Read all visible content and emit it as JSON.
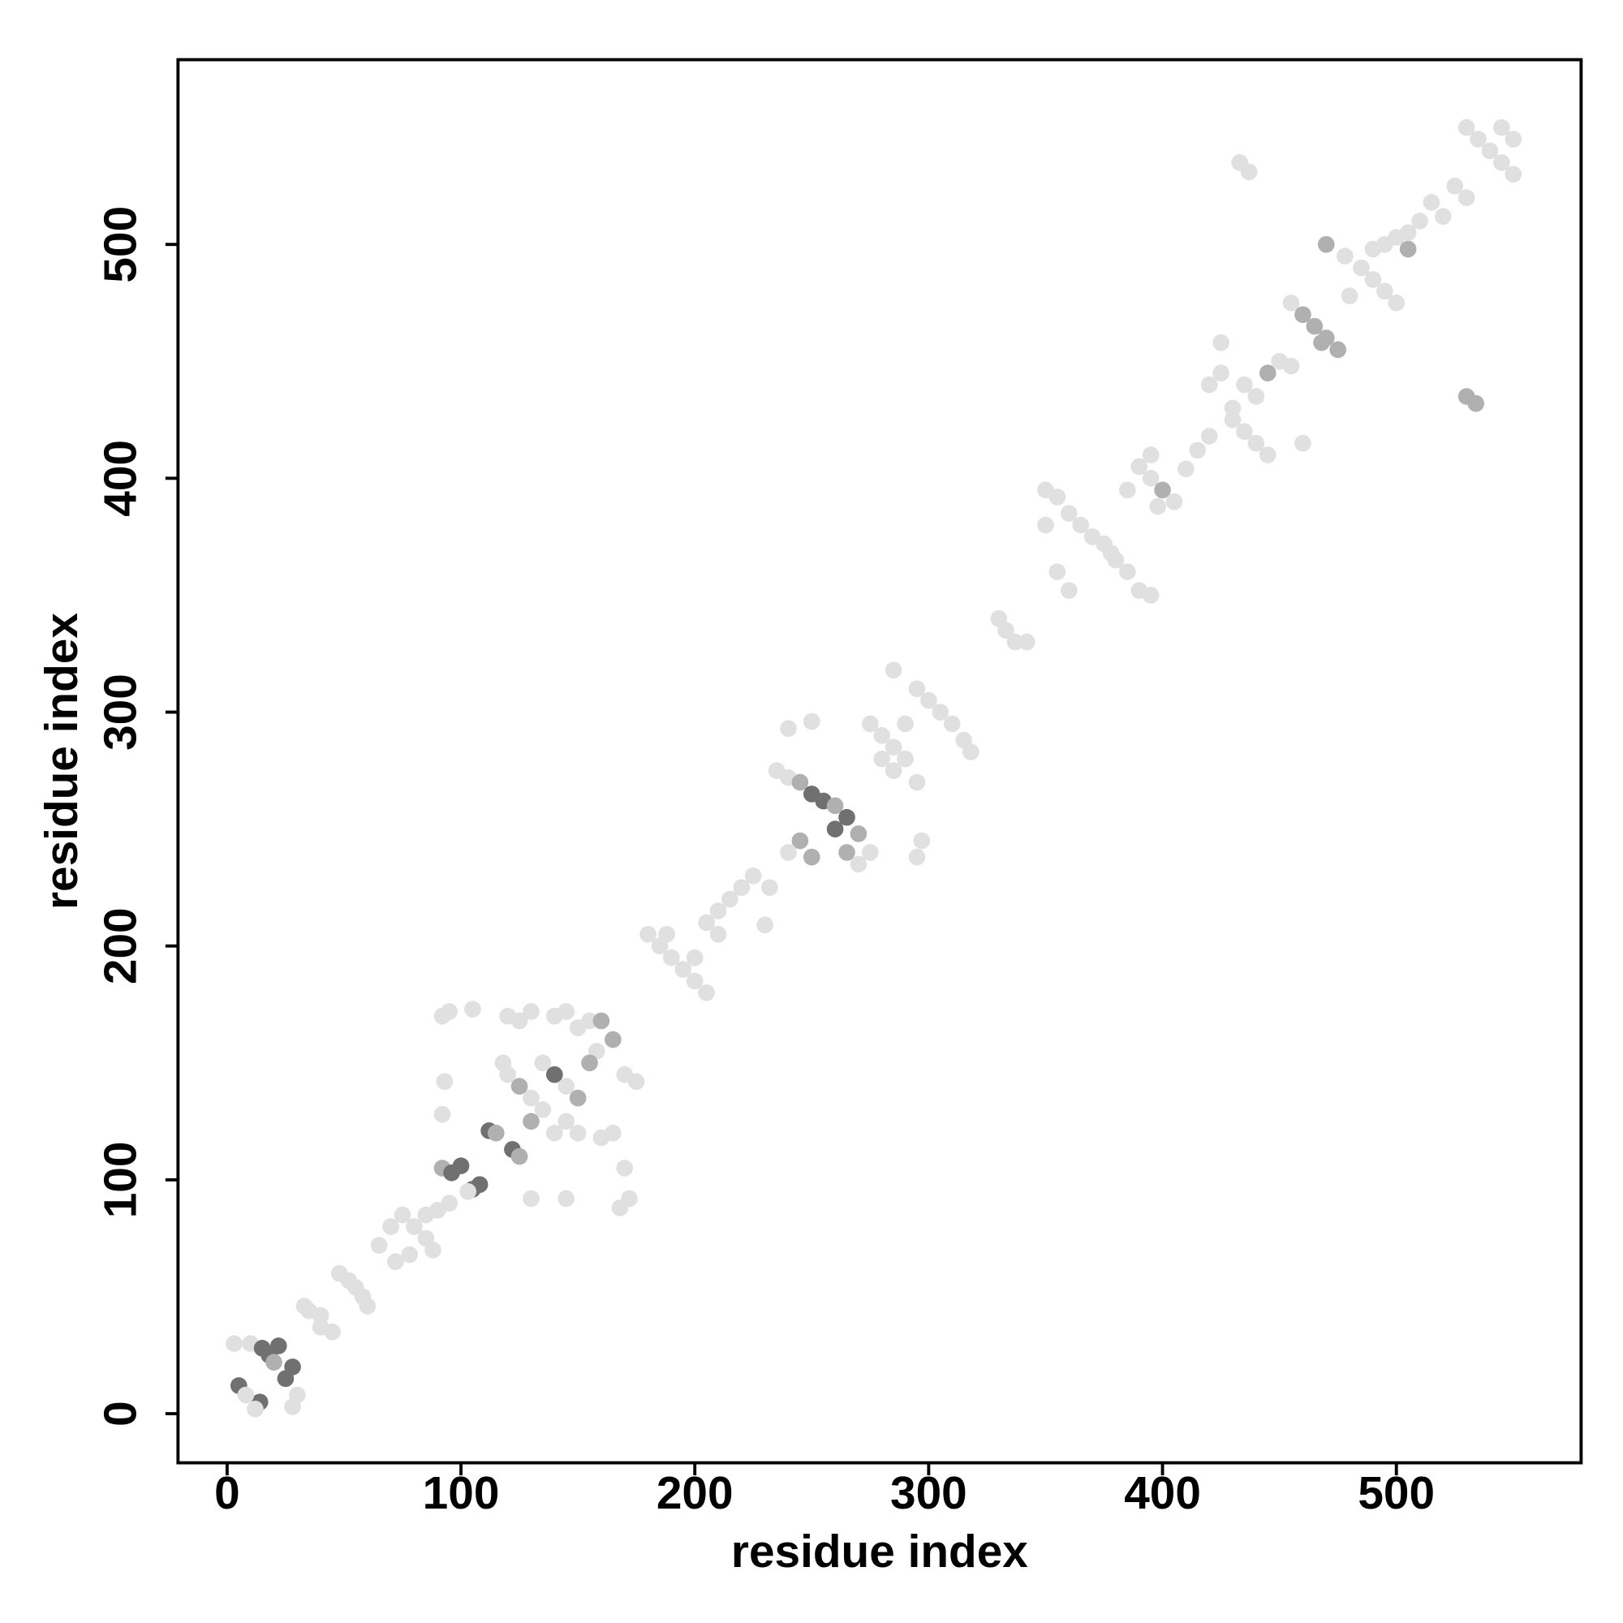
{
  "chart_data": {
    "type": "scatter",
    "xlabel": "residue index",
    "ylabel": "residue index",
    "xlim": [
      -21,
      579
    ],
    "ylim": [
      -21,
      579
    ],
    "xticks": [
      0,
      100,
      200,
      300,
      400,
      500
    ],
    "yticks": [
      0,
      100,
      200,
      300,
      400,
      500
    ],
    "series": [
      {
        "x": [
          5,
          10,
          15,
          18,
          22,
          14,
          25,
          28,
          30,
          12,
          8,
          3,
          28,
          20,
          35,
          40,
          45,
          40,
          33,
          48,
          52,
          58,
          60,
          55,
          65,
          70,
          75,
          80,
          85,
          78,
          88,
          72,
          85,
          90,
          95,
          92,
          96,
          100,
          105,
          108,
          103,
          92,
          93,
          92,
          95,
          105,
          112,
          115,
          122,
          125,
          130,
          145,
          120,
          125,
          130,
          118,
          125,
          130,
          135,
          140,
          145,
          150,
          145,
          140,
          135,
          150,
          155,
          160,
          165,
          158,
          170,
          175,
          165,
          170,
          172,
          168,
          155,
          150,
          160,
          145,
          140,
          130,
          120,
          180,
          185,
          190,
          195,
          200,
          205,
          205,
          210,
          215,
          220,
          225,
          232,
          230,
          210,
          200,
          188,
          235,
          240,
          245,
          250,
          255,
          260,
          265,
          270,
          275,
          270,
          265,
          260,
          245,
          250,
          240,
          240,
          250,
          275,
          280,
          285,
          290,
          295,
          285,
          280,
          290,
          285,
          295,
          300,
          305,
          310,
          315,
          318,
          295,
          297,
          330,
          333,
          337,
          342,
          350,
          355,
          360,
          365,
          370,
          375,
          380,
          385,
          390,
          395,
          350,
          355,
          360,
          378,
          385,
          390,
          395,
          400,
          405,
          398,
          395,
          410,
          415,
          420,
          420,
          425,
          430,
          435,
          440,
          445,
          435,
          440,
          445,
          450,
          455,
          460,
          425,
          430,
          455,
          460,
          465,
          470,
          475,
          468,
          470,
          478,
          485,
          490,
          495,
          500,
          495,
          500,
          505,
          480,
          490,
          505,
          510,
          515,
          520,
          525,
          530,
          530,
          535,
          540,
          545,
          550,
          545,
          550,
          433,
          437,
          530,
          534
        ],
        "y": [
          12,
          30,
          28,
          25,
          29,
          5,
          15,
          20,
          8,
          2,
          8,
          30,
          3,
          22,
          44,
          42,
          35,
          37,
          46,
          60,
          57,
          50,
          46,
          54,
          72,
          80,
          85,
          80,
          75,
          68,
          70,
          65,
          85,
          87,
          90,
          105,
          103,
          106,
          96,
          98,
          95,
          128,
          142,
          170,
          172,
          173,
          121,
          120,
          113,
          110,
          92,
          92,
          170,
          168,
          172,
          150,
          140,
          135,
          150,
          145,
          140,
          135,
          125,
          120,
          130,
          165,
          168,
          168,
          160,
          155,
          145,
          142,
          120,
          105,
          92,
          88,
          150,
          120,
          118,
          172,
          170,
          125,
          145,
          205,
          200,
          195,
          190,
          185,
          180,
          210,
          215,
          220,
          225,
          230,
          225,
          209,
          205,
          195,
          205,
          275,
          272,
          270,
          265,
          262,
          260,
          255,
          248,
          240,
          235,
          240,
          250,
          245,
          238,
          240,
          293,
          296,
          295,
          290,
          285,
          280,
          270,
          275,
          280,
          295,
          318,
          310,
          305,
          300,
          295,
          288,
          283,
          238,
          245,
          340,
          335,
          330,
          330,
          395,
          392,
          385,
          380,
          375,
          372,
          365,
          360,
          352,
          350,
          380,
          360,
          352,
          368,
          395,
          405,
          400,
          395,
          390,
          388,
          410,
          404,
          412,
          418,
          440,
          445,
          425,
          420,
          415,
          410,
          440,
          435,
          445,
          450,
          448,
          415,
          458,
          430,
          475,
          470,
          465,
          460,
          455,
          458,
          500,
          495,
          490,
          485,
          480,
          475,
          500,
          503,
          498,
          478,
          498,
          505,
          510,
          518,
          512,
          525,
          520,
          550,
          545,
          540,
          535,
          530,
          550,
          545,
          535,
          531,
          435,
          432
        ],
        "colors": [
          "#707070",
          "#e0e0e0",
          "#707070",
          "#707070",
          "#707070",
          "#707070",
          "#707070",
          "#707070",
          "#e0e0e0",
          "#e0e0e0",
          "#e0e0e0",
          "#e0e0e0",
          "#e0e0e0",
          "#b0b0b0",
          "#e0e0e0",
          "#e0e0e0",
          "#e0e0e0",
          "#e0e0e0",
          "#e0e0e0",
          "#e0e0e0",
          "#e0e0e0",
          "#e0e0e0",
          "#e0e0e0",
          "#e0e0e0",
          "#e0e0e0",
          "#e0e0e0",
          "#e0e0e0",
          "#e0e0e0",
          "#e0e0e0",
          "#e0e0e0",
          "#e0e0e0",
          "#e0e0e0",
          "#e0e0e0",
          "#e0e0e0",
          "#e0e0e0",
          "#b0b0b0",
          "#707070",
          "#707070",
          "#707070",
          "#707070",
          "#e0e0e0",
          "#e0e0e0",
          "#e0e0e0",
          "#e0e0e0",
          "#e0e0e0",
          "#e0e0e0",
          "#707070",
          "#b0b0b0",
          "#707070",
          "#b0b0b0",
          "#e0e0e0",
          "#e0e0e0",
          "#e0e0e0",
          "#e0e0e0",
          "#e0e0e0",
          "#e0e0e0",
          "#b0b0b0",
          "#e0e0e0",
          "#e0e0e0",
          "#707070",
          "#e0e0e0",
          "#b0b0b0",
          "#e0e0e0",
          "#e0e0e0",
          "#e0e0e0",
          "#e0e0e0",
          "#e0e0e0",
          "#b0b0b0",
          "#b0b0b0",
          "#e0e0e0",
          "#e0e0e0",
          "#e0e0e0",
          "#e0e0e0",
          "#e0e0e0",
          "#e0e0e0",
          "#e0e0e0",
          "#b0b0b0",
          "#e0e0e0",
          "#e0e0e0",
          "#e0e0e0",
          "#e0e0e0",
          "#b0b0b0",
          "#e0e0e0",
          "#e0e0e0",
          "#e0e0e0",
          "#e0e0e0",
          "#e0e0e0",
          "#e0e0e0",
          "#e0e0e0",
          "#e0e0e0",
          "#e0e0e0",
          "#e0e0e0",
          "#e0e0e0",
          "#e0e0e0",
          "#e0e0e0",
          "#e0e0e0",
          "#e0e0e0",
          "#e0e0e0",
          "#e0e0e0",
          "#e0e0e0",
          "#e0e0e0",
          "#b0b0b0",
          "#707070",
          "#707070",
          "#b0b0b0",
          "#707070",
          "#b0b0b0",
          "#e0e0e0",
          "#e0e0e0",
          "#b0b0b0",
          "#707070",
          "#b0b0b0",
          "#b0b0b0",
          "#e0e0e0",
          "#e0e0e0",
          "#e0e0e0",
          "#e0e0e0",
          "#e0e0e0",
          "#e0e0e0",
          "#e0e0e0",
          "#e0e0e0",
          "#e0e0e0",
          "#e0e0e0",
          "#e0e0e0",
          "#e0e0e0",
          "#e0e0e0",
          "#e0e0e0",
          "#e0e0e0",
          "#e0e0e0",
          "#e0e0e0",
          "#e0e0e0",
          "#e0e0e0",
          "#e0e0e0",
          "#e0e0e0",
          "#e0e0e0",
          "#e0e0e0",
          "#e0e0e0",
          "#e0e0e0",
          "#e0e0e0",
          "#e0e0e0",
          "#e0e0e0",
          "#e0e0e0",
          "#e0e0e0",
          "#e0e0e0",
          "#e0e0e0",
          "#e0e0e0",
          "#e0e0e0",
          "#e0e0e0",
          "#e0e0e0",
          "#e0e0e0",
          "#e0e0e0",
          "#e0e0e0",
          "#e0e0e0",
          "#e0e0e0",
          "#b0b0b0",
          "#e0e0e0",
          "#e0e0e0",
          "#e0e0e0",
          "#e0e0e0",
          "#e0e0e0",
          "#e0e0e0",
          "#e0e0e0",
          "#e0e0e0",
          "#e0e0e0",
          "#e0e0e0",
          "#e0e0e0",
          "#e0e0e0",
          "#e0e0e0",
          "#e0e0e0",
          "#b0b0b0",
          "#e0e0e0",
          "#e0e0e0",
          "#e0e0e0",
          "#e0e0e0",
          "#e0e0e0",
          "#e0e0e0",
          "#b0b0b0",
          "#b0b0b0",
          "#b0b0b0",
          "#b0b0b0",
          "#b0b0b0",
          "#b0b0b0",
          "#e0e0e0",
          "#e0e0e0",
          "#e0e0e0",
          "#e0e0e0",
          "#e0e0e0",
          "#e0e0e0",
          "#e0e0e0",
          "#b0b0b0",
          "#e0e0e0",
          "#e0e0e0",
          "#e0e0e0",
          "#e0e0e0",
          "#e0e0e0",
          "#e0e0e0",
          "#e0e0e0",
          "#e0e0e0",
          "#e0e0e0",
          "#e0e0e0",
          "#e0e0e0",
          "#e0e0e0",
          "#e0e0e0",
          "#e0e0e0",
          "#e0e0e0",
          "#e0e0e0",
          "#e0e0e0",
          "#b0b0b0",
          "#b0b0b0",
          "#b0b0b0",
          "#b0b0b0"
        ]
      }
    ]
  }
}
